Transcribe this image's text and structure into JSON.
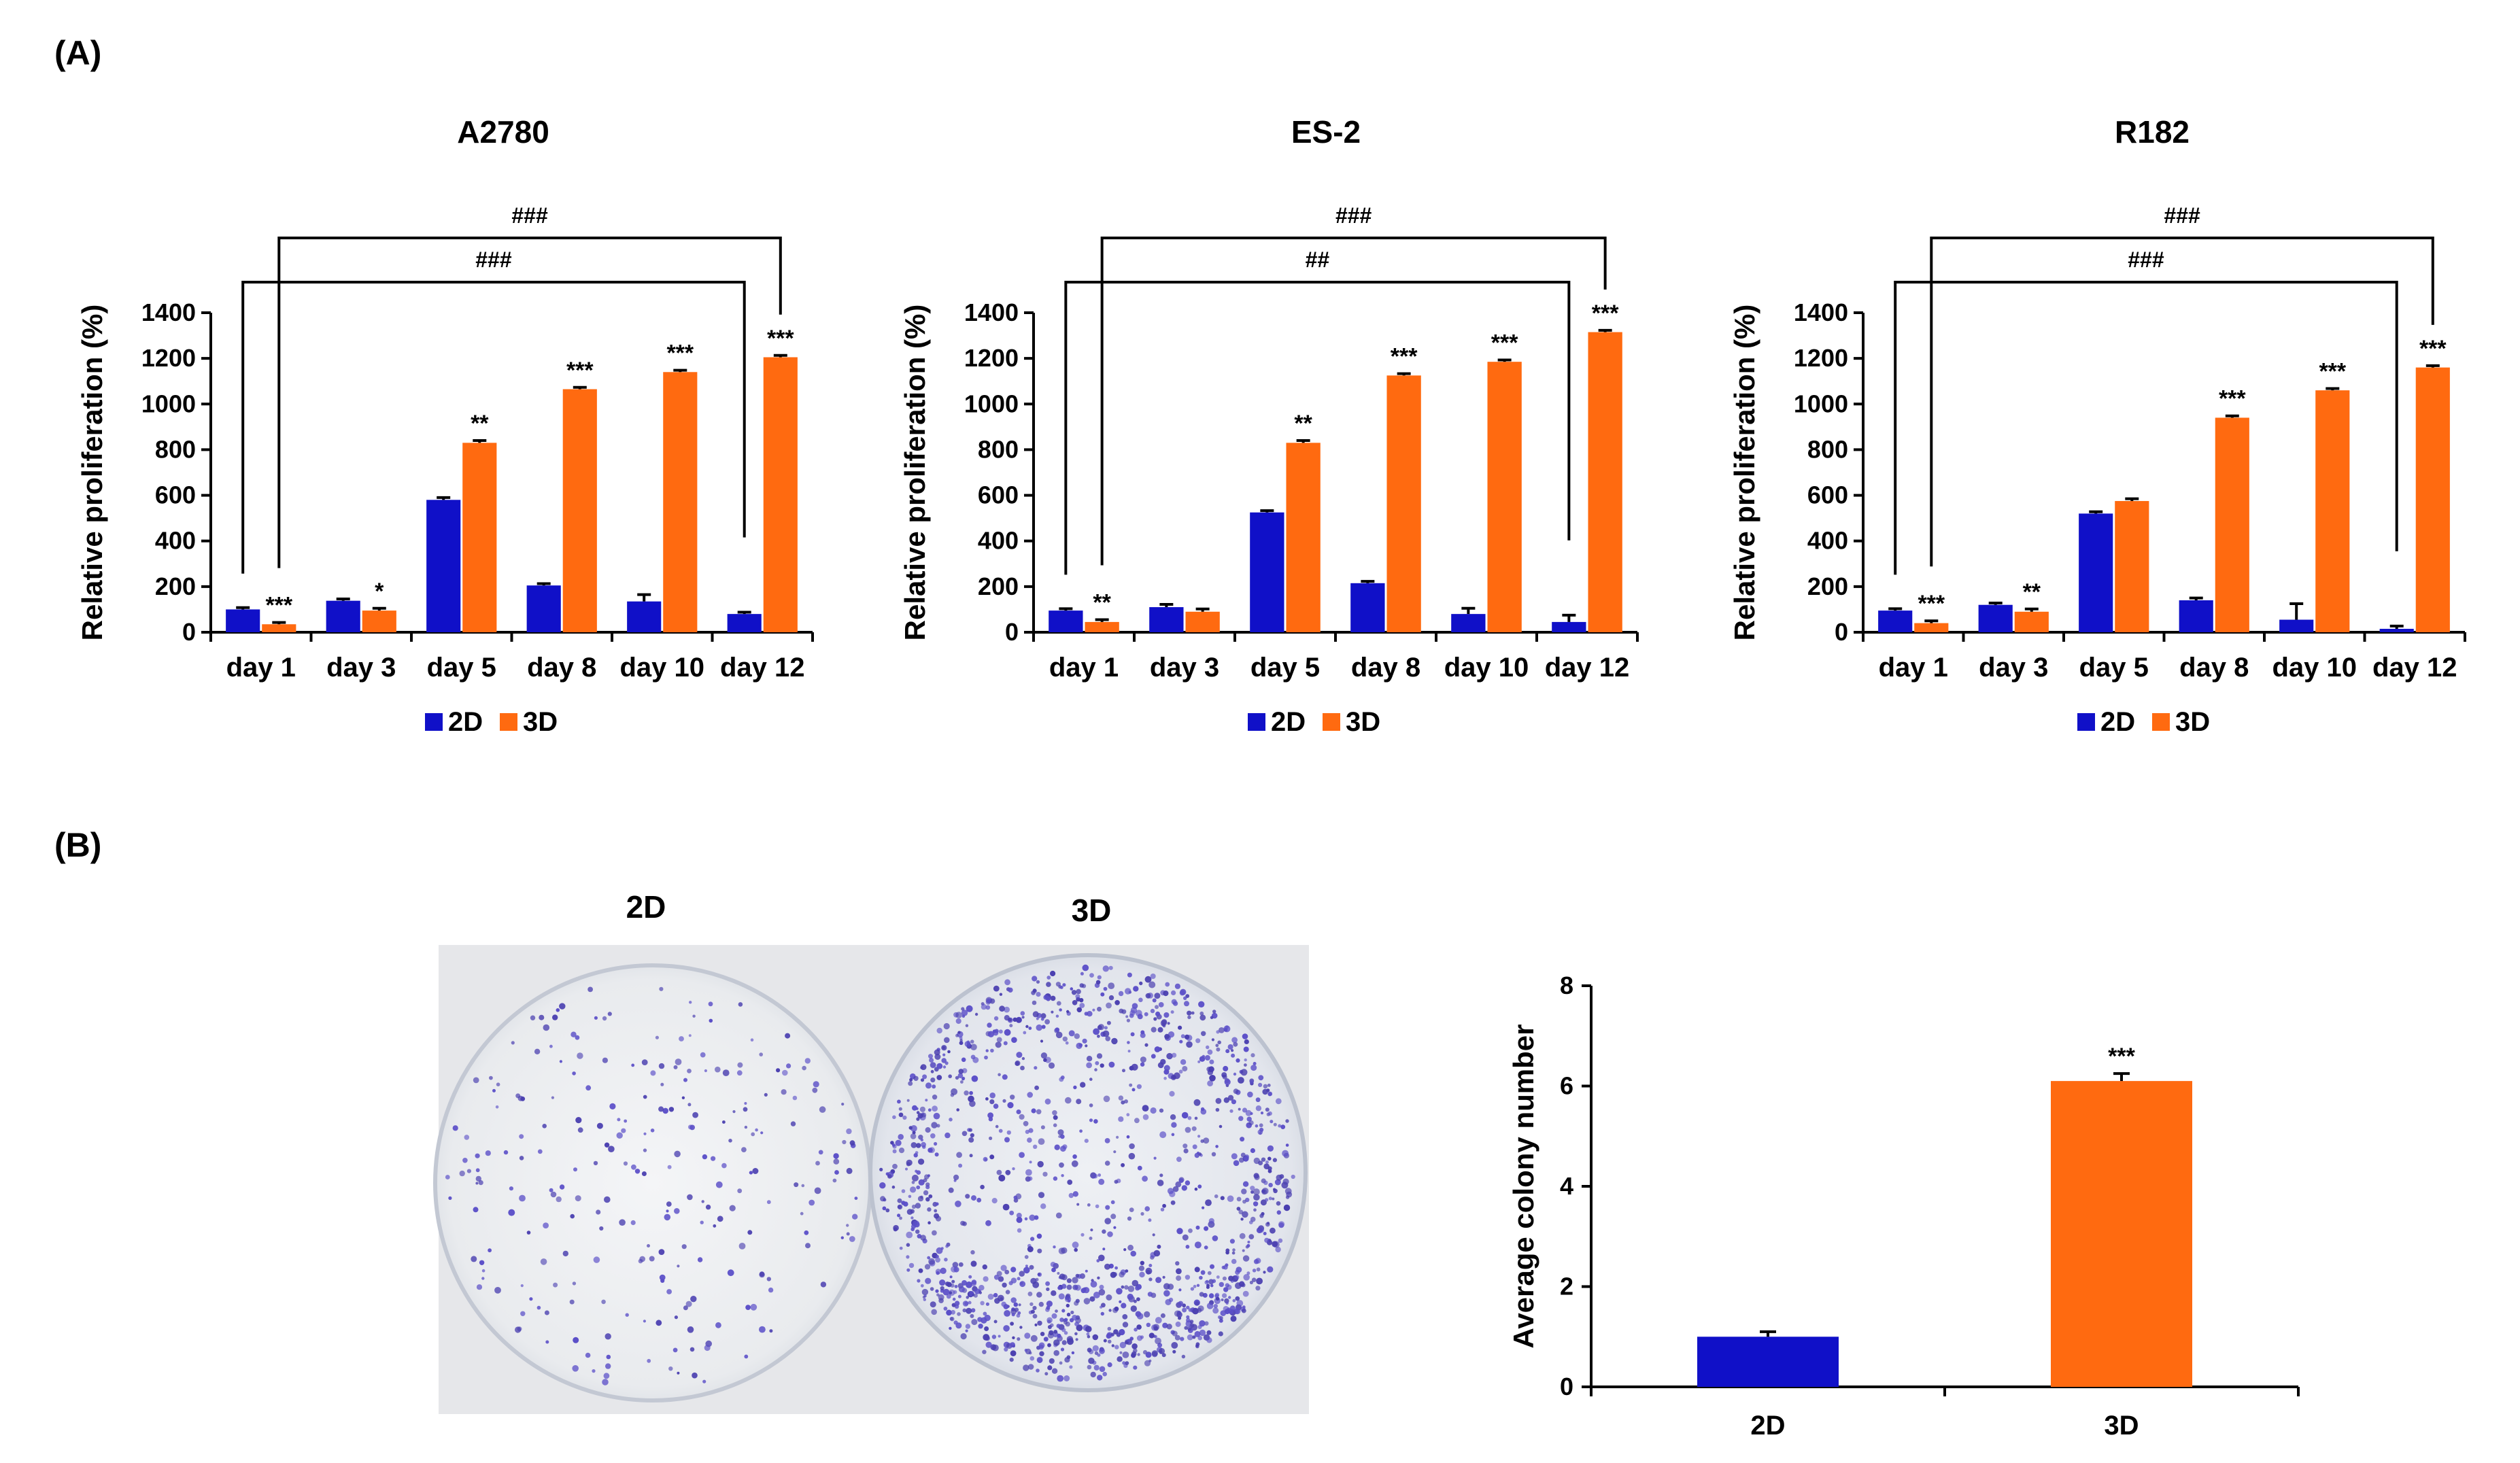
{
  "panels": {
    "a_label": "(A)",
    "b_label": "(B)"
  },
  "colors": {
    "2D": "#1010c8",
    "3D": "#ff6a10"
  },
  "chart_data": [
    {
      "type": "bar",
      "title": "A2780",
      "ylabel": "Relative proliferation (%)",
      "xlabel": "",
      "ylim": [
        0,
        1400
      ],
      "yticks": [
        0,
        200,
        400,
        600,
        800,
        1000,
        1200,
        1400
      ],
      "categories": [
        "day 1",
        "day 3",
        "day 5",
        "day 8",
        "day 10",
        "day 12"
      ],
      "series": [
        {
          "name": "2D",
          "values": [
            100,
            138,
            580,
            205,
            135,
            80
          ],
          "errors": [
            8,
            8,
            10,
            8,
            30,
            8
          ]
        },
        {
          "name": "3D",
          "values": [
            35,
            95,
            830,
            1065,
            1140,
            1205
          ],
          "errors": [
            8,
            10,
            10,
            8,
            8,
            8
          ]
        }
      ],
      "significance_3d": [
        "***",
        "*",
        "**",
        "***",
        "***",
        "***"
      ],
      "brackets": [
        {
          "label": "###",
          "from": "day 1 2D",
          "to": "day 12 2D"
        },
        {
          "label": "###",
          "from": "day 1 3D",
          "to": "day 12 3D"
        }
      ],
      "legend": [
        "2D",
        "3D"
      ],
      "legend_position": "bottom",
      "grid": false
    },
    {
      "type": "bar",
      "title": "ES-2",
      "ylabel": "Relative proliferation (%)",
      "xlabel": "",
      "ylim": [
        0,
        1400
      ],
      "yticks": [
        0,
        200,
        400,
        600,
        800,
        1000,
        1200,
        1400
      ],
      "categories": [
        "day 1",
        "day 3",
        "day 5",
        "day 8",
        "day 10",
        "day 12"
      ],
      "series": [
        {
          "name": "2D",
          "values": [
            95,
            110,
            525,
            215,
            80,
            45
          ],
          "errors": [
            8,
            12,
            8,
            8,
            25,
            30
          ]
        },
        {
          "name": "3D",
          "values": [
            45,
            90,
            830,
            1125,
            1185,
            1315
          ],
          "errors": [
            10,
            12,
            10,
            8,
            8,
            8
          ]
        }
      ],
      "significance_3d": [
        "**",
        "",
        "**",
        "***",
        "***",
        "***"
      ],
      "brackets": [
        {
          "label": "##",
          "from": "day 1 2D",
          "to": "day 12 2D"
        },
        {
          "label": "###",
          "from": "day 1 3D",
          "to": "day 12 3D"
        }
      ],
      "legend": [
        "2D",
        "3D"
      ],
      "legend_position": "bottom",
      "grid": false
    },
    {
      "type": "bar",
      "title": "R182",
      "ylabel": "Relative proliferation (%)",
      "xlabel": "",
      "ylim": [
        0,
        1400
      ],
      "yticks": [
        0,
        200,
        400,
        600,
        800,
        1000,
        1200,
        1400
      ],
      "categories": [
        "day 1",
        "day 3",
        "day 5",
        "day 8",
        "day 10",
        "day 12"
      ],
      "series": [
        {
          "name": "2D",
          "values": [
            95,
            120,
            520,
            140,
            55,
            15
          ],
          "errors": [
            8,
            8,
            8,
            10,
            70,
            12
          ]
        },
        {
          "name": "3D",
          "values": [
            40,
            90,
            575,
            940,
            1060,
            1160
          ],
          "errors": [
            10,
            12,
            10,
            8,
            8,
            8
          ]
        }
      ],
      "significance_3d": [
        "***",
        "**",
        "",
        "***",
        "***",
        "***"
      ],
      "brackets": [
        {
          "label": "###",
          "from": "day 1 2D",
          "to": "day 12 2D"
        },
        {
          "label": "###",
          "from": "day 1 3D",
          "to": "day 12 3D"
        }
      ],
      "legend": [
        "2D",
        "3D"
      ],
      "legend_position": "bottom",
      "grid": false
    },
    {
      "type": "bar",
      "title": "",
      "ylabel": "Average colony number",
      "xlabel": "",
      "ylim": [
        0,
        8
      ],
      "yticks": [
        0,
        2,
        4,
        6,
        8
      ],
      "categories": [
        "2D",
        "3D"
      ],
      "series": [
        {
          "name": "",
          "values": [
            1.0,
            6.1
          ],
          "errors": [
            0.1,
            0.15
          ]
        }
      ],
      "significance": [
        "",
        "***"
      ],
      "grid": false
    }
  ],
  "photos": {
    "label_2d": "2D",
    "label_3d": "3D"
  }
}
